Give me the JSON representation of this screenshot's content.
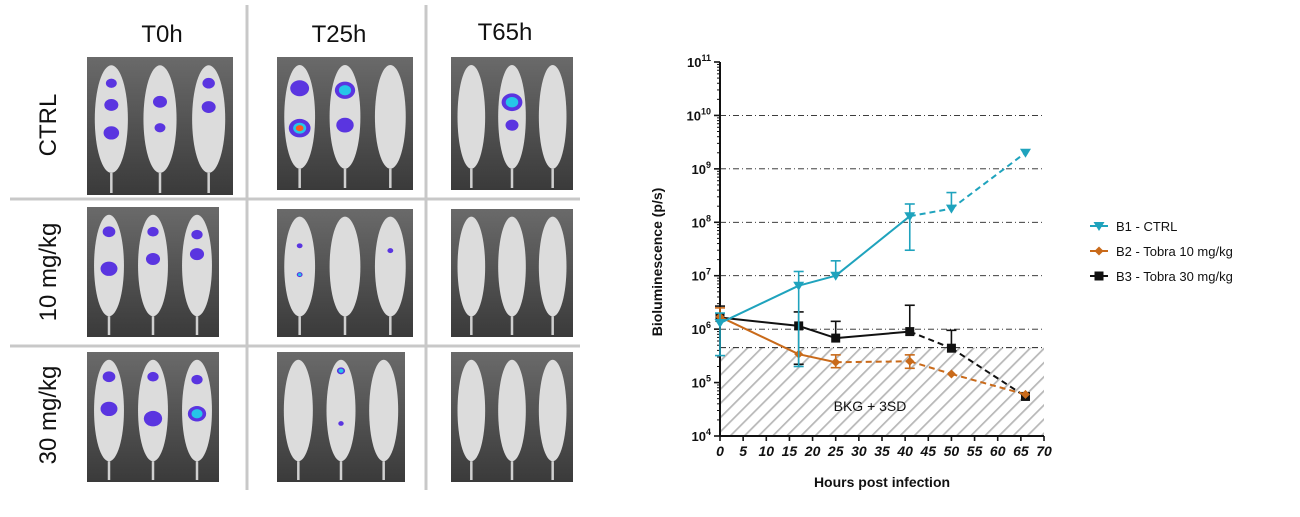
{
  "panel": {
    "columns": [
      "T0h",
      "T25h",
      "T65h"
    ],
    "rows": [
      "CTRL",
      "10 mg/kg",
      "30 mg/kg"
    ]
  },
  "colors": {
    "b1": "#1fa3bd",
    "b2": "#c96a1a",
    "b3": "#111111",
    "hatch": "#b8b8b8",
    "grid": "#222222"
  },
  "chart_data": {
    "type": "line",
    "xlabel": "Hours post infection",
    "ylabel": "Bioluminescence (p/s)",
    "yscale": "log",
    "xlim": [
      0,
      70
    ],
    "ylim": [
      10000,
      100000000000
    ],
    "xticks": [
      0,
      5,
      10,
      15,
      20,
      25,
      30,
      35,
      40,
      45,
      50,
      55,
      60,
      65,
      70
    ],
    "yticks": [
      {
        "base": "10",
        "exp": "4"
      },
      {
        "base": "10",
        "exp": "5"
      },
      {
        "base": "10",
        "exp": "6"
      },
      {
        "base": "10",
        "exp": "7"
      },
      {
        "base": "10",
        "exp": "8"
      },
      {
        "base": "10",
        "exp": "9"
      },
      {
        "base": "10",
        "exp": "10"
      },
      {
        "base": "10",
        "exp": "11"
      }
    ],
    "grid": "dash-dot horizontal at 10^6 to 10^10",
    "legend_position": "right",
    "threshold": {
      "label": "BKG + 3SD",
      "value": 450000
    },
    "series": [
      {
        "name": "B1  - CTRL",
        "marker": "triangle-down",
        "color": "#1fa3bd",
        "x": [
          0,
          17,
          25,
          41,
          50,
          66
        ],
        "y": [
          1300000,
          6500000,
          10000000,
          130000000,
          180000000,
          2000000000
        ],
        "err_hi": [
          2000000,
          12000000,
          19000000,
          220000000,
          360000000,
          null
        ],
        "err_lo": [
          320000,
          200000,
          null,
          30000000,
          null,
          null
        ],
        "dashed_from_index": 3
      },
      {
        "name": "B2  - Tobra 10 mg/kg",
        "marker": "diamond",
        "color": "#c96a1a",
        "x": [
          0,
          17,
          25,
          41,
          50,
          66
        ],
        "y": [
          1700000,
          340000,
          240000,
          250000,
          145000,
          60000
        ],
        "err_hi": [
          2500000,
          null,
          330000,
          330000,
          null,
          null
        ],
        "err_lo": [
          null,
          null,
          190000,
          185000,
          null,
          null
        ],
        "dashed_from_index": 2
      },
      {
        "name": "B3  - Tobra 30 mg/kg",
        "marker": "square",
        "color": "#111111",
        "x": [
          0,
          17,
          25,
          41,
          50,
          66
        ],
        "y": [
          1650000,
          1150000,
          680000,
          900000,
          440000,
          55000
        ],
        "err_hi": [
          2700000,
          2100000,
          1400000,
          2800000,
          950000,
          null
        ],
        "err_lo": [
          null,
          220000,
          null,
          null,
          null,
          null
        ],
        "dashed_from_index": 3
      }
    ]
  }
}
